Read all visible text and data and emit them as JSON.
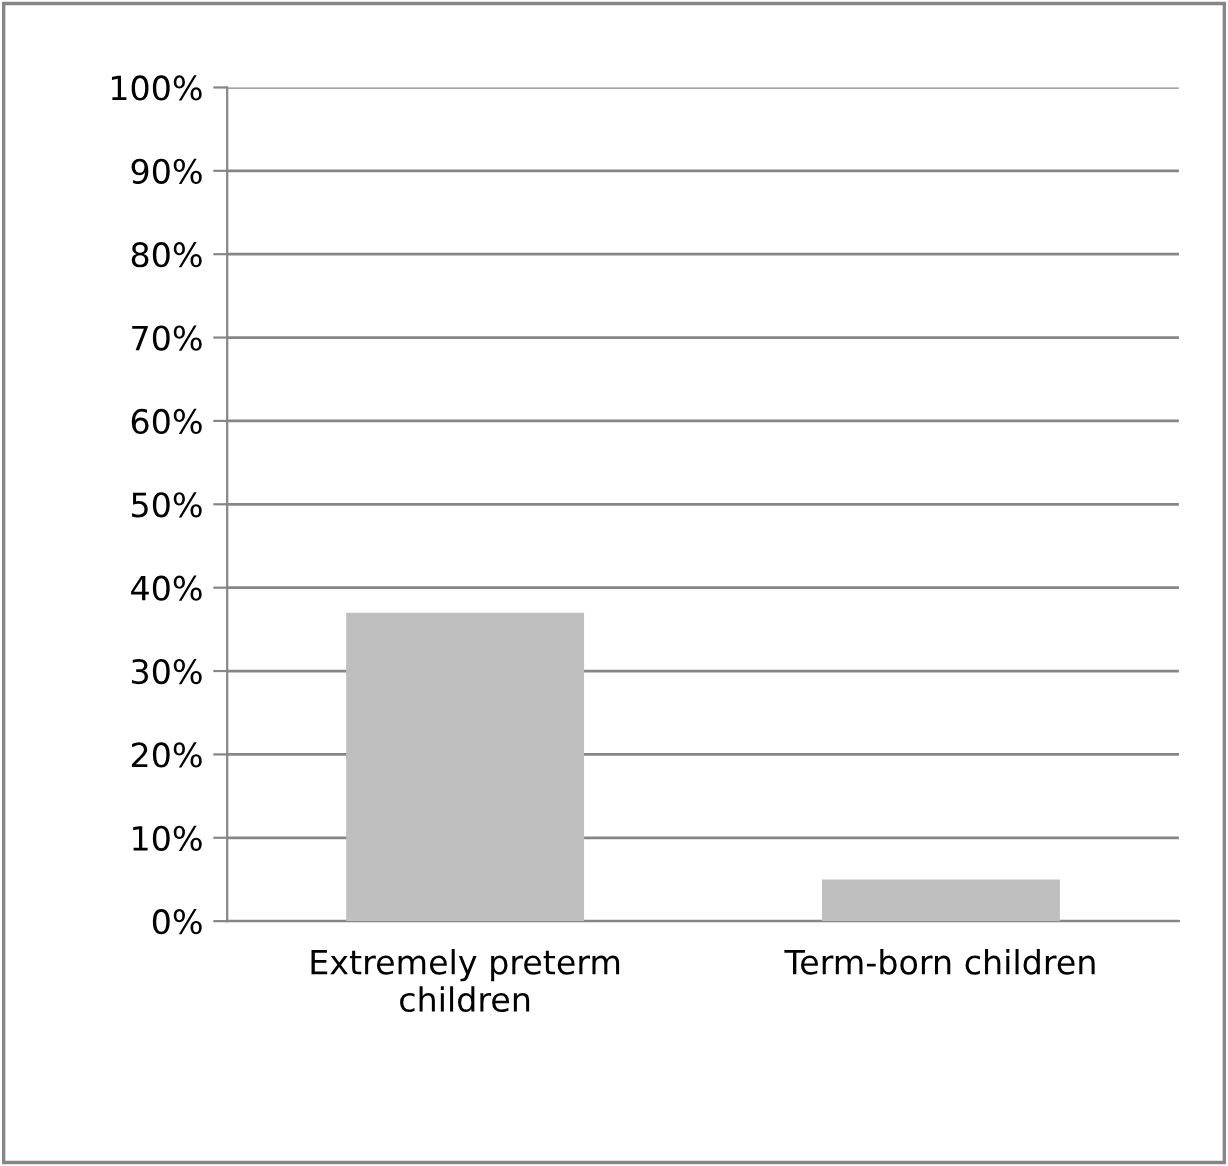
{
  "chart_data": {
    "type": "bar",
    "categories": [
      "Extremely preterm\nchildren",
      "Term-born children"
    ],
    "values": [
      37,
      5
    ],
    "color": "#bfbfbf",
    "ylim": [
      0,
      100
    ],
    "yticks": [
      {
        "value": 0,
        "label": "0%"
      },
      {
        "value": 10,
        "label": "10%"
      },
      {
        "value": 20,
        "label": "20%"
      },
      {
        "value": 30,
        "label": "30%"
      },
      {
        "value": 40,
        "label": "40%"
      },
      {
        "value": 50,
        "label": "50%"
      },
      {
        "value": 60,
        "label": "60%"
      },
      {
        "value": 70,
        "label": "70%"
      },
      {
        "value": 80,
        "label": "80%"
      },
      {
        "value": 90,
        "label": "90%"
      },
      {
        "value": 100,
        "label": "100%"
      }
    ],
    "grid": "y"
  }
}
